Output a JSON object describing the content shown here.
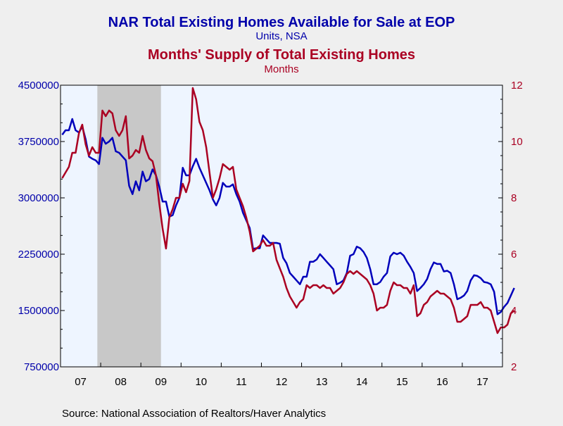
{
  "chart_data": {
    "type": "line",
    "title_1": "NAR Total Existing Homes Available for Sale at EOP",
    "subtitle_1": "Units, NSA",
    "title_2": "Months' Supply of Total Existing Homes",
    "subtitle_2": "Months",
    "source": "Source:  National Association of Realtors/Haver Analytics",
    "x_start": "2007-01",
    "x_end": "2017-12",
    "x_tick_labels": [
      "07",
      "08",
      "09",
      "10",
      "11",
      "12",
      "13",
      "14",
      "15",
      "16",
      "17"
    ],
    "recession_shading": {
      "start": "2007-12",
      "end": "2009-06"
    },
    "y_left": {
      "range": [
        750000,
        4500000
      ],
      "tick_values": [
        750000,
        1500000,
        2250000,
        3000000,
        3750000,
        4500000
      ],
      "tick_labels": [
        "750000",
        "1500000",
        "2250000",
        "3000000",
        "3750000",
        "4500000"
      ]
    },
    "y_right": {
      "range": [
        2,
        12
      ],
      "tick_values": [
        2,
        4,
        6,
        8,
        10,
        12
      ],
      "tick_labels": [
        "2",
        "4",
        "6",
        "8",
        "10",
        "12"
      ]
    },
    "series": [
      {
        "name": "NAR Total Existing Homes Available for Sale at EOP",
        "axis": "left",
        "color": "#0000bb",
        "start": "2007-01",
        "values": [
          3840000,
          3900000,
          3900000,
          4050000,
          3900000,
          3870000,
          3950000,
          3780000,
          3550000,
          3520000,
          3500000,
          3450000,
          3800000,
          3720000,
          3750000,
          3800000,
          3620000,
          3600000,
          3550000,
          3500000,
          3160000,
          3050000,
          3220000,
          3100000,
          3350000,
          3220000,
          3250000,
          3380000,
          3300000,
          3150000,
          2950000,
          2950000,
          2750000,
          2770000,
          2900000,
          3000000,
          3400000,
          3300000,
          3300000,
          3420000,
          3520000,
          3400000,
          3300000,
          3200000,
          3100000,
          2980000,
          2900000,
          3000000,
          3200000,
          3150000,
          3150000,
          3180000,
          3050000,
          2950000,
          2800000,
          2700000,
          2600000,
          2320000,
          2330000,
          2330000,
          2500000,
          2450000,
          2400000,
          2400000,
          2400000,
          2390000,
          2200000,
          2130000,
          2000000,
          1950000,
          1900000,
          1850000,
          1950000,
          1950000,
          2150000,
          2150000,
          2180000,
          2250000,
          2200000,
          2150000,
          2100000,
          2050000,
          1850000,
          1870000,
          1900000,
          2000000,
          2230000,
          2250000,
          2350000,
          2330000,
          2280000,
          2200000,
          2050000,
          1850000,
          1850000,
          1880000,
          1950000,
          2000000,
          2220000,
          2270000,
          2250000,
          2270000,
          2230000,
          2150000,
          2080000,
          2000000,
          1760000,
          1800000,
          1850000,
          1920000,
          2050000,
          2140000,
          2120000,
          2120000,
          2020000,
          2030000,
          2000000,
          1850000,
          1650000,
          1670000,
          1700000,
          1760000,
          1900000,
          1970000,
          1960000,
          1930000,
          1880000,
          1870000,
          1850000,
          1750000,
          1450000,
          1480000,
          1550000,
          1600000,
          1700000,
          1800000
        ]
      },
      {
        "name": "Months' Supply of Total Existing Homes",
        "axis": "right",
        "color": "#aa0022",
        "start": "2007-01",
        "values": [
          8.7,
          8.9,
          9.1,
          9.6,
          9.6,
          10.3,
          10.6,
          9.9,
          9.5,
          9.8,
          9.6,
          9.6,
          11.1,
          10.9,
          11.1,
          11.0,
          10.4,
          10.2,
          10.4,
          10.9,
          9.4,
          9.5,
          9.7,
          9.6,
          10.2,
          9.7,
          9.4,
          9.3,
          8.8,
          7.8,
          6.9,
          6.2,
          7.3,
          7.6,
          8.0,
          8.0,
          8.5,
          8.2,
          8.6,
          11.9,
          11.5,
          10.7,
          10.4,
          9.8,
          8.9,
          8.0,
          8.3,
          8.7,
          9.2,
          9.1,
          9.0,
          9.1,
          8.3,
          8.0,
          7.7,
          7.3,
          6.8,
          6.1,
          6.2,
          6.3,
          6.5,
          6.3,
          6.3,
          6.4,
          5.8,
          5.5,
          5.2,
          4.8,
          4.5,
          4.3,
          4.1,
          4.3,
          4.4,
          4.9,
          4.8,
          4.9,
          4.9,
          4.8,
          4.9,
          4.8,
          4.8,
          4.6,
          4.7,
          4.8,
          5.0,
          5.3,
          5.4,
          5.3,
          5.4,
          5.3,
          5.2,
          5.1,
          4.9,
          4.6,
          4.0,
          4.1,
          4.1,
          4.2,
          4.7,
          5.0,
          4.9,
          4.9,
          4.8,
          4.8,
          4.6,
          4.9,
          3.8,
          3.9,
          4.2,
          4.3,
          4.5,
          4.6,
          4.7,
          4.6,
          4.6,
          4.5,
          4.4,
          4.1,
          3.6,
          3.6,
          3.7,
          3.8,
          4.2,
          4.2,
          4.2,
          4.3,
          4.1,
          4.1,
          4.0,
          3.6,
          3.2,
          3.4,
          3.4,
          3.5,
          3.9,
          4.0
        ]
      }
    ]
  }
}
